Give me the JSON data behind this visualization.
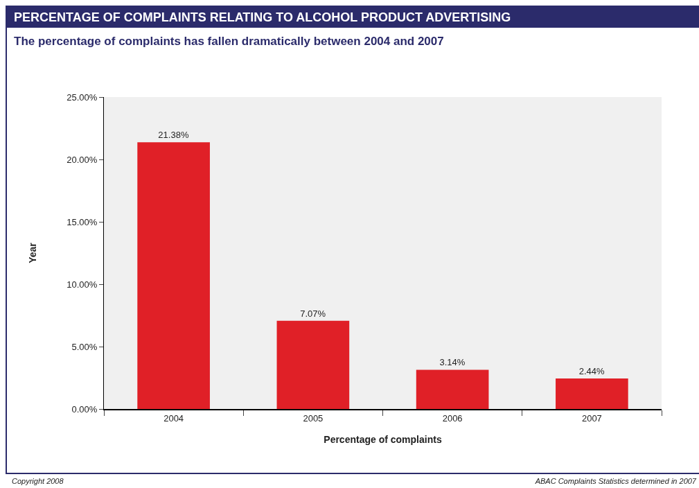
{
  "chart_data": {
    "type": "bar",
    "title": "PERCENTAGE OF COMPLAINTS RELATING TO ALCOHOL PRODUCT ADVERTISING",
    "subtitle": "The percentage of complaints has fallen dramatically between 2004 and 2007",
    "xlabel": "Percentage of complaints",
    "ylabel": "Year",
    "categories": [
      "2004",
      "2005",
      "2006",
      "2007"
    ],
    "values": [
      21.38,
      7.07,
      3.14,
      2.44
    ],
    "value_labels": [
      "21.38%",
      "7.07%",
      "3.14%",
      "2.44%"
    ],
    "color": "#e02027",
    "ylim": [
      0,
      25
    ],
    "yticks": [
      {
        "value": 0,
        "label": "0.00%"
      },
      {
        "value": 5,
        "label": "5.00%"
      },
      {
        "value": 10,
        "label": "10.00%"
      },
      {
        "value": 15,
        "label": "15.00%"
      },
      {
        "value": 20,
        "label": "20.00%"
      },
      {
        "value": 25,
        "label": "25.00%"
      }
    ],
    "grid": false,
    "annotations": [
      "Copyright 2008",
      "ABAC Complaints Statistics determined in 2007"
    ]
  }
}
